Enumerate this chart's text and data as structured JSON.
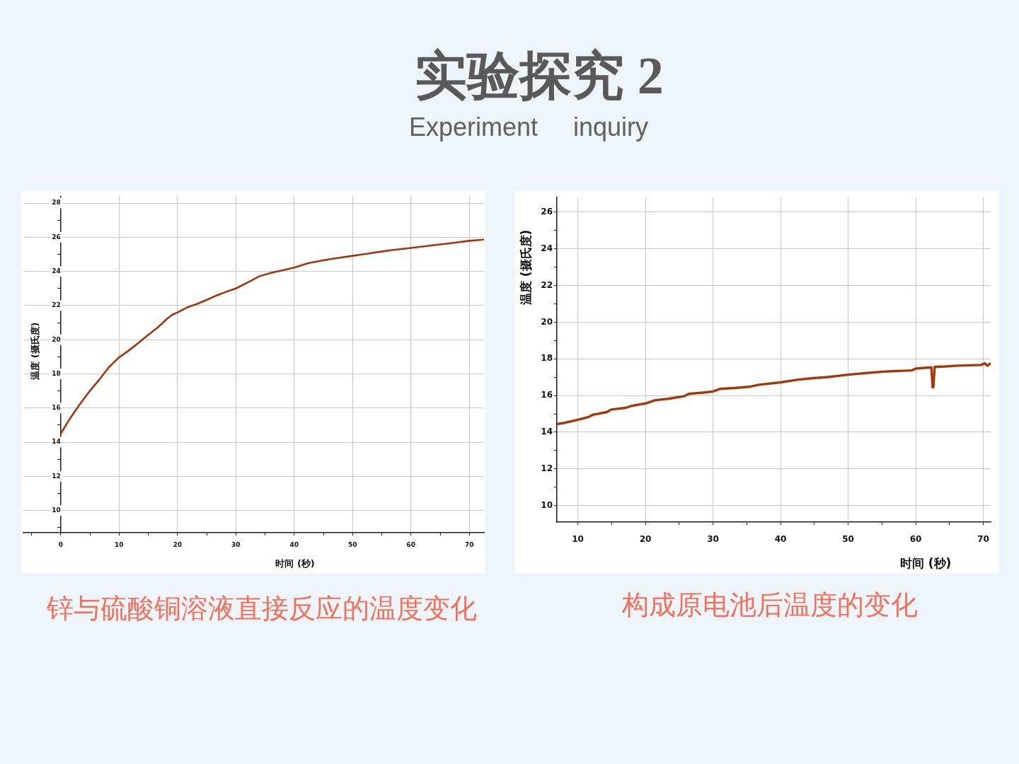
{
  "chart_data": [
    {
      "type": "other",
      "title": "实验探究 2",
      "subtitle": "Experiment inquiry"
    },
    {
      "type": "line",
      "x": [
        0,
        1.5,
        3.2,
        4.9,
        6.6,
        8.2,
        10,
        11.6,
        13.3,
        14.9,
        16.6,
        18.3,
        19.1,
        20,
        21.6,
        23.3,
        25,
        26.7,
        28.3,
        30,
        31.9,
        34,
        36.1,
        38.2,
        40,
        42.4,
        44.5,
        46.6,
        50,
        52.8,
        54.9,
        57,
        60,
        63.2,
        66.6,
        70,
        72.4
      ],
      "values": [
        14.5,
        15.34,
        16.19,
        16.96,
        17.66,
        18.37,
        18.97,
        19.35,
        19.81,
        20.26,
        20.71,
        21.25,
        21.46,
        21.6,
        21.88,
        22.09,
        22.33,
        22.59,
        22.8,
        23.0,
        23.33,
        23.71,
        23.92,
        24.08,
        24.22,
        24.48,
        24.62,
        24.74,
        24.91,
        25.05,
        25.16,
        25.26,
        25.37,
        25.51,
        25.64,
        25.79,
        25.86
      ],
      "color": "#a0360e",
      "xlim": [
        -6.4,
        72.5
      ],
      "ylim": [
        8.7,
        28.4
      ],
      "xticks": [
        {
          "value": -5,
          "label": null
        },
        0,
        {
          "value": 5,
          "label": null
        },
        10,
        {
          "value": 15,
          "label": null
        },
        20,
        {
          "value": 25,
          "label": null
        },
        30,
        {
          "value": 35,
          "label": null
        },
        40,
        {
          "value": 45,
          "label": null
        },
        50,
        {
          "value": 55,
          "label": null
        },
        60,
        {
          "value": 65,
          "label": null
        },
        70
      ],
      "yticks": [
        {
          "value": 9,
          "label": null
        },
        10,
        {
          "value": 11,
          "label": null
        },
        12,
        {
          "value": 13,
          "label": null
        },
        14,
        {
          "value": 15,
          "label": null
        },
        16,
        {
          "value": 17,
          "label": null
        },
        18,
        {
          "value": 19,
          "label": null
        },
        20,
        {
          "value": 21,
          "label": null
        },
        22,
        {
          "value": 23,
          "label": null
        },
        24,
        {
          "value": 25,
          "label": null
        },
        26,
        {
          "value": 27,
          "label": null
        },
        28
      ],
      "xlabel": "时间 (秒)",
      "ylabel": "温度 (摄氏度)",
      "grid": true,
      "annotations": [
        "锌与硫酸铜溶液直接反应的温度变化"
      ]
    },
    {
      "type": "line",
      "x": [
        7,
        8,
        10,
        11.5,
        12.2,
        14.3,
        15,
        17.2,
        17.9,
        20,
        21.4,
        23.5,
        25.7,
        26.4,
        28.5,
        30,
        31,
        33.5,
        35.6,
        36.8,
        40,
        42.4,
        44.9,
        47,
        50,
        53.1,
        55.9,
        59.4,
        60,
        62.3,
        62.5,
        62.6,
        62.8,
        64.4,
        66.2,
        69.7,
        70.2,
        70.6,
        71
      ],
      "values": [
        14.45,
        14.51,
        14.68,
        14.82,
        14.95,
        15.1,
        15.24,
        15.34,
        15.43,
        15.57,
        15.74,
        15.83,
        15.96,
        16.09,
        16.16,
        16.22,
        16.36,
        16.42,
        16.49,
        16.59,
        16.72,
        16.86,
        16.95,
        17.01,
        17.14,
        17.24,
        17.32,
        17.37,
        17.47,
        17.54,
        16.45,
        16.45,
        17.57,
        17.59,
        17.63,
        17.67,
        17.76,
        17.63,
        17.74
      ],
      "color": "#a3380b",
      "xlim": [
        6.9,
        71.1
      ],
      "ylim": [
        9.1,
        26.8
      ],
      "xticks": [
        10,
        {
          "value": 15,
          "label": null
        },
        20,
        {
          "value": 25,
          "label": null
        },
        30,
        {
          "value": 35,
          "label": null
        },
        40,
        {
          "value": 45,
          "label": null
        },
        50,
        {
          "value": 55,
          "label": null
        },
        60,
        {
          "value": 65,
          "label": null
        },
        70
      ],
      "yticks": [
        10,
        {
          "value": 11,
          "label": null
        },
        12,
        {
          "value": 13,
          "label": null
        },
        14,
        {
          "value": 15,
          "label": null
        },
        16,
        {
          "value": 17,
          "label": null
        },
        18,
        {
          "value": 19,
          "label": null
        },
        20,
        {
          "value": 21,
          "label": null
        },
        22,
        {
          "value": 23,
          "label": null
        },
        24,
        {
          "value": 25,
          "label": null
        },
        26
      ],
      "xlabel": "时间 (秒)",
      "ylabel": "温度 (摄氏度)",
      "grid": true,
      "annotations": [
        "构成原电池后温度的变化"
      ]
    }
  ]
}
